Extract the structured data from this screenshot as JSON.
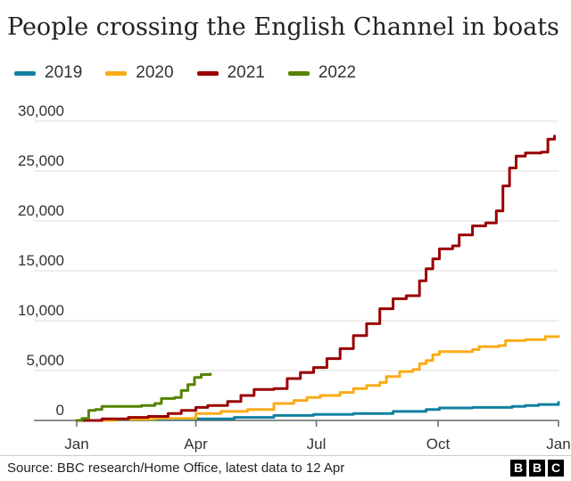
{
  "header": {
    "title": "People crossing the English Channel in boats"
  },
  "footer": {
    "source": "Source: BBC research/Home Office, latest data to 12 Apr",
    "logo_letters": [
      "B",
      "B",
      "C"
    ]
  },
  "colors": {
    "grid": "#dddddd",
    "axis": "#666666",
    "text": "#333333"
  },
  "chart_data": {
    "type": "line",
    "title": "People crossing the English Channel in boats",
    "xlabel": "",
    "ylabel": "",
    "ylim": [
      0,
      30000
    ],
    "yticks": [
      0,
      5000,
      10000,
      15000,
      20000,
      25000,
      30000
    ],
    "ytick_labels": [
      "0",
      "5,000",
      "10,000",
      "15,000",
      "20,000",
      "25,000",
      "30,000"
    ],
    "xticks": [
      {
        "day": 1,
        "label": "Jan"
      },
      {
        "day": 91,
        "label": "Apr"
      },
      {
        "day": 182,
        "label": "Jul"
      },
      {
        "day": 274,
        "label": "Oct"
      },
      {
        "day": 365,
        "label": "Jan"
      }
    ],
    "x_unit": "day of year",
    "legend_position": "top-left",
    "grid": true,
    "series": [
      {
        "name": "2019",
        "color": "#1380A1",
        "points": [
          [
            1,
            0
          ],
          [
            30,
            50
          ],
          [
            60,
            100
          ],
          [
            91,
            150
          ],
          [
            120,
            300
          ],
          [
            150,
            500
          ],
          [
            180,
            600
          ],
          [
            210,
            700
          ],
          [
            240,
            900
          ],
          [
            265,
            1100
          ],
          [
            275,
            1250
          ],
          [
            300,
            1300
          ],
          [
            330,
            1400
          ],
          [
            340,
            1500
          ],
          [
            350,
            1600
          ],
          [
            365,
            1800
          ]
        ]
      },
      {
        "name": "2020",
        "color": "#FAAB18",
        "points": [
          [
            1,
            0
          ],
          [
            30,
            100
          ],
          [
            60,
            200
          ],
          [
            91,
            700
          ],
          [
            110,
            900
          ],
          [
            130,
            1100
          ],
          [
            150,
            1700
          ],
          [
            165,
            2000
          ],
          [
            175,
            2300
          ],
          [
            185,
            2500
          ],
          [
            200,
            2800
          ],
          [
            210,
            3200
          ],
          [
            220,
            3500
          ],
          [
            230,
            3800
          ],
          [
            235,
            4400
          ],
          [
            245,
            4900
          ],
          [
            255,
            5100
          ],
          [
            260,
            5700
          ],
          [
            265,
            6000
          ],
          [
            270,
            6600
          ],
          [
            275,
            6900
          ],
          [
            300,
            7100
          ],
          [
            305,
            7400
          ],
          [
            320,
            7500
          ],
          [
            325,
            8000
          ],
          [
            340,
            8100
          ],
          [
            355,
            8400
          ],
          [
            365,
            8420
          ]
        ]
      },
      {
        "name": "2021",
        "color": "#990000",
        "points": [
          [
            1,
            0
          ],
          [
            20,
            150
          ],
          [
            40,
            300
          ],
          [
            55,
            400
          ],
          [
            70,
            700
          ],
          [
            80,
            1000
          ],
          [
            91,
            1300
          ],
          [
            100,
            1500
          ],
          [
            115,
            1900
          ],
          [
            125,
            2500
          ],
          [
            135,
            3100
          ],
          [
            150,
            3200
          ],
          [
            160,
            4200
          ],
          [
            170,
            4800
          ],
          [
            180,
            5300
          ],
          [
            190,
            6200
          ],
          [
            200,
            7200
          ],
          [
            210,
            8500
          ],
          [
            220,
            9700
          ],
          [
            230,
            11200
          ],
          [
            240,
            12200
          ],
          [
            250,
            12500
          ],
          [
            255,
            12500
          ],
          [
            260,
            14000
          ],
          [
            265,
            15200
          ],
          [
            270,
            16200
          ],
          [
            275,
            17200
          ],
          [
            285,
            17500
          ],
          [
            290,
            18600
          ],
          [
            300,
            19500
          ],
          [
            310,
            19800
          ],
          [
            318,
            21000
          ],
          [
            323,
            23500
          ],
          [
            328,
            25300
          ],
          [
            333,
            26500
          ],
          [
            340,
            26800
          ],
          [
            352,
            26900
          ],
          [
            357,
            28200
          ],
          [
            362,
            28500
          ]
        ]
      },
      {
        "name": "2022",
        "color": "#588300",
        "points": [
          [
            1,
            0
          ],
          [
            5,
            200
          ],
          [
            10,
            1000
          ],
          [
            15,
            1100
          ],
          [
            20,
            1400
          ],
          [
            35,
            1400
          ],
          [
            50,
            1500
          ],
          [
            60,
            1700
          ],
          [
            65,
            2200
          ],
          [
            75,
            2300
          ],
          [
            80,
            3000
          ],
          [
            85,
            3600
          ],
          [
            90,
            4300
          ],
          [
            95,
            4600
          ],
          [
            102,
            4650
          ]
        ]
      }
    ]
  }
}
